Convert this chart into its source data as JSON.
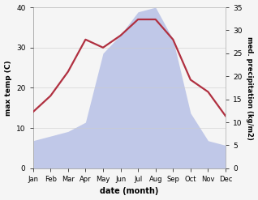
{
  "months": [
    "Jan",
    "Feb",
    "Mar",
    "Apr",
    "May",
    "Jun",
    "Jul",
    "Aug",
    "Sep",
    "Oct",
    "Nov",
    "Dec"
  ],
  "temperature": [
    14,
    18,
    24,
    32,
    30,
    33,
    37,
    37,
    32,
    22,
    19,
    13
  ],
  "precipitation": [
    6,
    7,
    8,
    10,
    25,
    29,
    34,
    35,
    28,
    12,
    6,
    5
  ],
  "temp_color": "#b03040",
  "precip_color": "#c0c8e8",
  "ylabel_left": "max temp (C)",
  "ylabel_right": "med. precipitation (kg/m2)",
  "xlabel": "date (month)",
  "ylim_left": [
    0,
    40
  ],
  "ylim_right": [
    0,
    35
  ],
  "yticks_left": [
    0,
    10,
    20,
    30,
    40
  ],
  "yticks_right": [
    0,
    5,
    10,
    15,
    20,
    25,
    30,
    35
  ],
  "background_color": "#f5f5f5",
  "plot_bg_color": "#ffffff",
  "temp_linewidth": 1.6
}
